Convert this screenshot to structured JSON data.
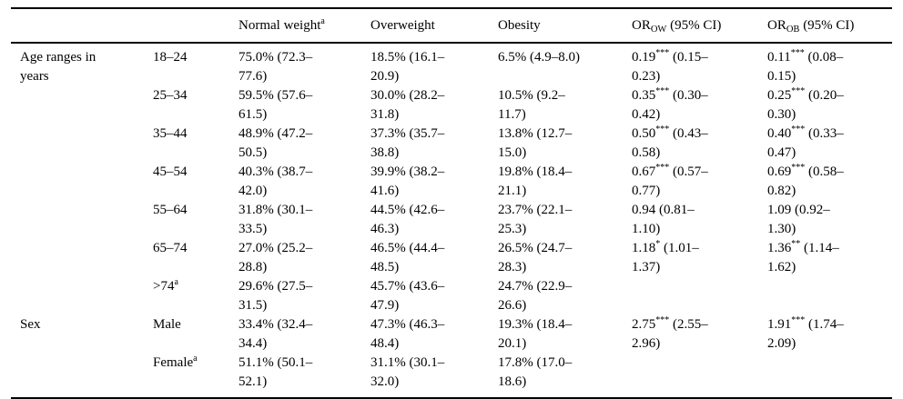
{
  "page": {
    "background_color": "#ffffff",
    "text_color": "#000000",
    "rule_color": "#000000"
  },
  "table": {
    "header": {
      "normal_weight": {
        "text": "Normal weight",
        "sup": "a"
      },
      "overweight": "Overweight",
      "obesity": "Obesity",
      "or_ow": {
        "pre": "OR",
        "sub": "OW",
        "post": " (95% CI)"
      },
      "or_ob": {
        "pre": "OR",
        "sub": "OB",
        "post": " (95% CI)"
      }
    },
    "rows": [
      {
        "group": "Age ranges in\nyears",
        "cat": {
          "text": "18–24",
          "sup": ""
        },
        "nw": "75.0% (72.3–\n77.6)",
        "ow": "18.5% (16.1–\n20.9)",
        "ob": "6.5% (4.9–8.0)",
        "or_ow": {
          "pre": "0.19",
          "sup": "***",
          "post": " (0.15–\n0.23)"
        },
        "or_ob": {
          "pre": "0.11",
          "sup": "***",
          "post": " (0.08–\n0.15)"
        }
      },
      {
        "group": "",
        "cat": {
          "text": "25–34",
          "sup": ""
        },
        "nw": "59.5% (57.6–\n61.5)",
        "ow": "30.0% (28.2–\n31.8)",
        "ob": "10.5% (9.2–\n11.7)",
        "or_ow": {
          "pre": "0.35",
          "sup": "***",
          "post": " (0.30–\n0.42)"
        },
        "or_ob": {
          "pre": "0.25",
          "sup": "***",
          "post": " (0.20–\n0.30)"
        }
      },
      {
        "group": "",
        "cat": {
          "text": "35–44",
          "sup": ""
        },
        "nw": "48.9% (47.2–\n50.5)",
        "ow": "37.3% (35.7–\n38.8)",
        "ob": "13.8% (12.7–\n15.0)",
        "or_ow": {
          "pre": "0.50",
          "sup": "***",
          "post": " (0.43–\n0.58)"
        },
        "or_ob": {
          "pre": "0.40",
          "sup": "***",
          "post": " (0.33–\n0.47)"
        }
      },
      {
        "group": "",
        "cat": {
          "text": "45–54",
          "sup": ""
        },
        "nw": "40.3% (38.7–\n42.0)",
        "ow": "39.9% (38.2–\n41.6)",
        "ob": "19.8% (18.4–\n21.1)",
        "or_ow": {
          "pre": "0.67",
          "sup": "***",
          "post": " (0.57–\n0.77)"
        },
        "or_ob": {
          "pre": "0.69",
          "sup": "***",
          "post": " (0.58–\n0.82)"
        }
      },
      {
        "group": "",
        "cat": {
          "text": "55–64",
          "sup": ""
        },
        "nw": "31.8% (30.1–\n33.5)",
        "ow": "44.5% (42.6–\n46.3)",
        "ob": "23.7% (22.1–\n25.3)",
        "or_ow": {
          "pre": "0.94",
          "sup": "",
          "post": " (0.81–\n1.10)"
        },
        "or_ob": {
          "pre": "1.09",
          "sup": "",
          "post": " (0.92–\n1.30)"
        }
      },
      {
        "group": "",
        "cat": {
          "text": "65–74",
          "sup": ""
        },
        "nw": "27.0% (25.2–\n28.8)",
        "ow": "46.5% (44.4–\n48.5)",
        "ob": "26.5% (24.7–\n28.3)",
        "or_ow": {
          "pre": "1.18",
          "sup": "*",
          "post": " (1.01–\n1.37)"
        },
        "or_ob": {
          "pre": "1.36",
          "sup": "**",
          "post": " (1.14–\n1.62)"
        }
      },
      {
        "group": "",
        "cat": {
          "text": ">74",
          "sup": "a"
        },
        "nw": "29.6% (27.5–\n31.5)",
        "ow": "45.7% (43.6–\n47.9)",
        "ob": "24.7% (22.9–\n26.6)",
        "or_ow": {
          "pre": "",
          "sup": "",
          "post": ""
        },
        "or_ob": {
          "pre": "",
          "sup": "",
          "post": ""
        }
      },
      {
        "group": "Sex",
        "cat": {
          "text": "Male",
          "sup": ""
        },
        "nw": "33.4% (32.4–\n34.4)",
        "ow": "47.3% (46.3–\n48.4)",
        "ob": "19.3% (18.4–\n20.1)",
        "or_ow": {
          "pre": "2.75",
          "sup": "***",
          "post": " (2.55–\n2.96)"
        },
        "or_ob": {
          "pre": "1.91",
          "sup": "***",
          "post": " (1.74–\n2.09)"
        }
      },
      {
        "group": "",
        "cat": {
          "text": "Female",
          "sup": "a"
        },
        "nw": "51.1% (50.1–\n52.1)",
        "ow": "31.1% (30.1–\n32.0)",
        "ob": "17.8% (17.0–\n18.6)",
        "or_ow": {
          "pre": "",
          "sup": "",
          "post": ""
        },
        "or_ob": {
          "pre": "",
          "sup": "",
          "post": ""
        }
      }
    ]
  }
}
